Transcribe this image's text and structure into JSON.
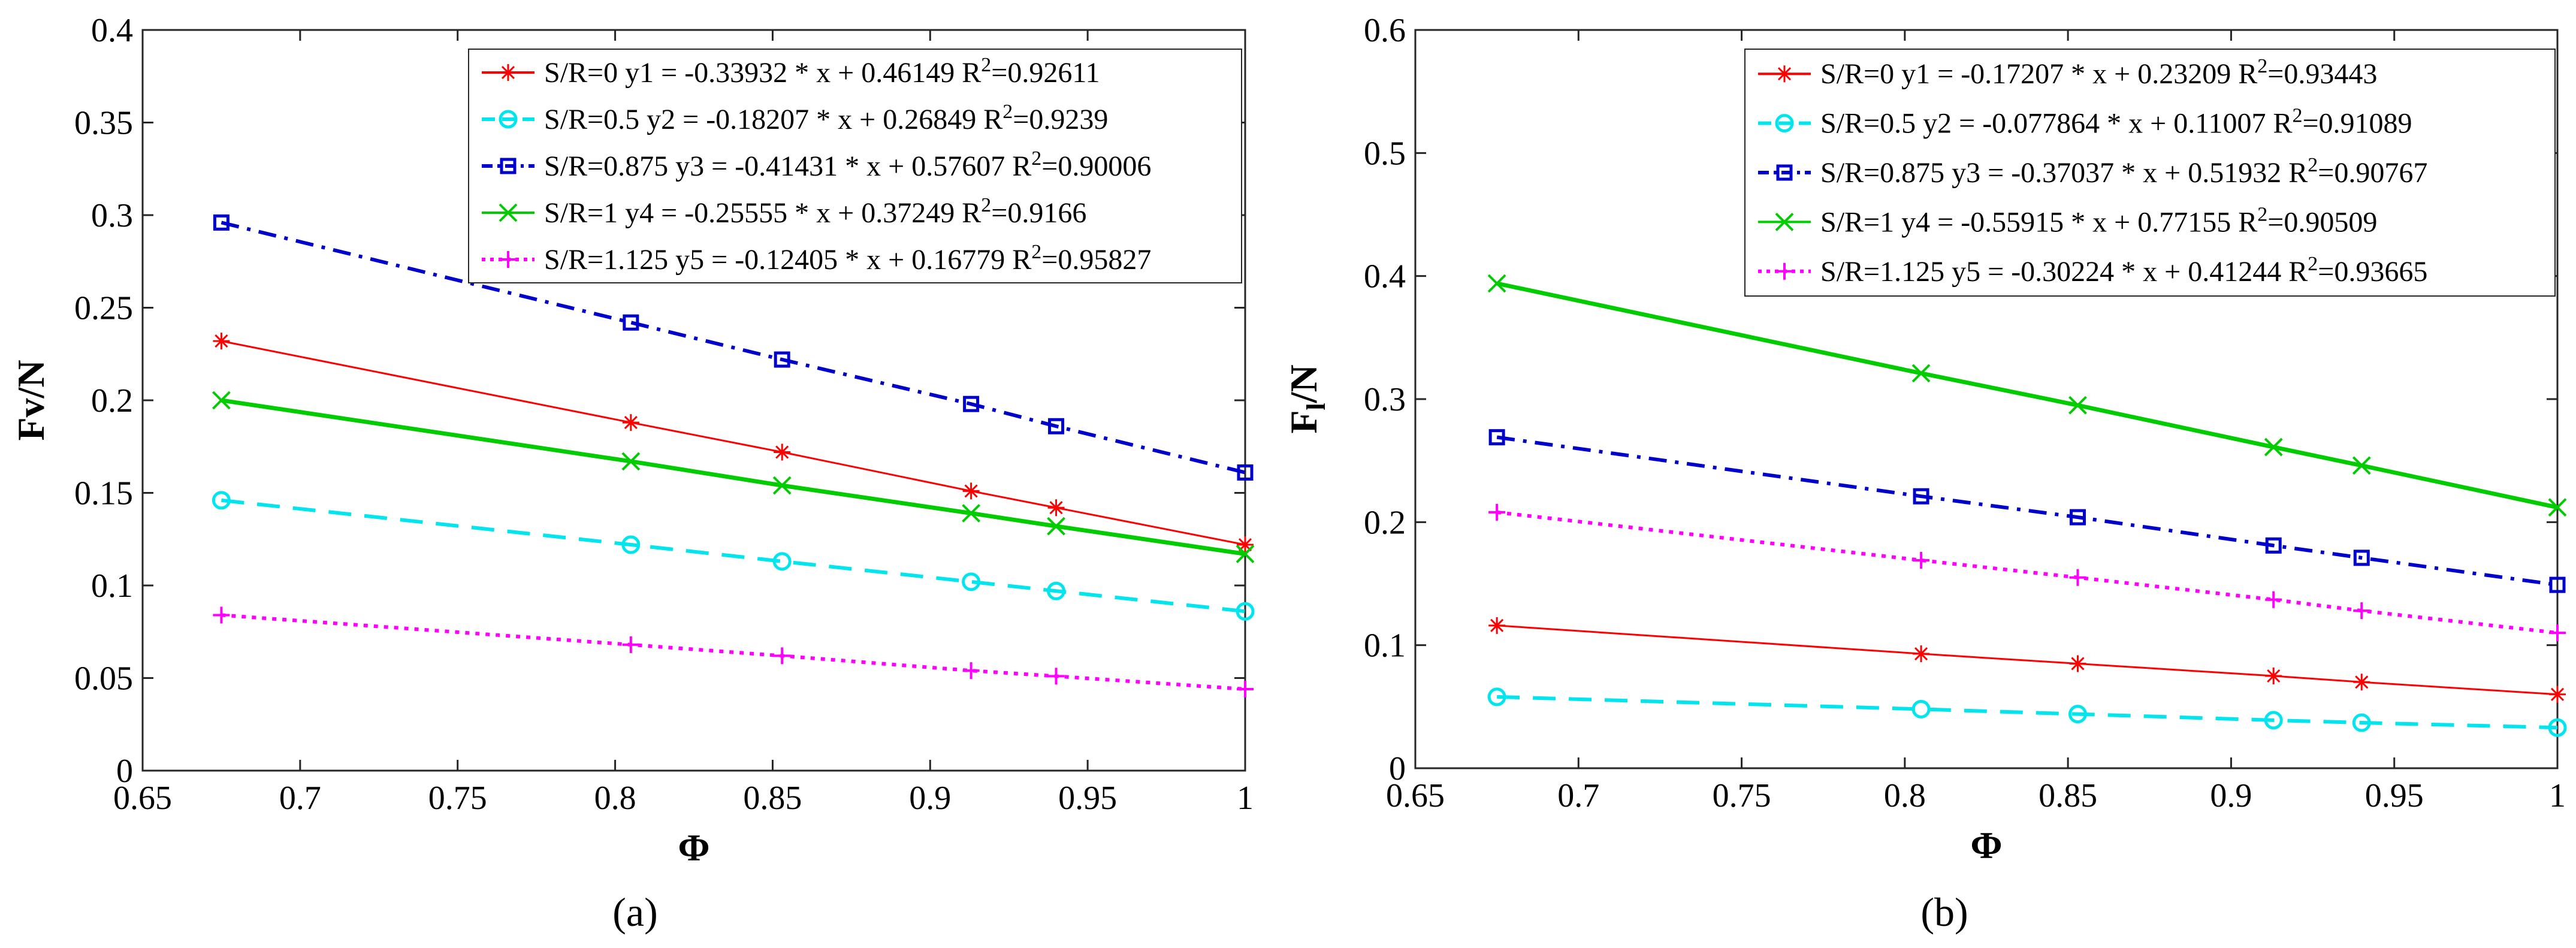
{
  "chart_data": [
    {
      "type": "line",
      "panel_label": "(a)",
      "xlabel": "Φ",
      "ylabel": "Fv/N",
      "xlim": [
        0.65,
        1.0
      ],
      "ylim": [
        0,
        0.4
      ],
      "xticks": [
        "0.65",
        "0.7",
        "0.75",
        "0.8",
        "0.85",
        "0.9",
        "0.95",
        "1"
      ],
      "yticks": [
        "0",
        "0.05",
        "0.1",
        "0.15",
        "0.2",
        "0.25",
        "0.3",
        "0.35",
        "0.4"
      ],
      "legend_position": "top-right",
      "x": [
        0.675,
        0.805,
        0.853,
        0.913,
        0.94,
        1.0
      ],
      "series": [
        {
          "name": "S/R=0",
          "legend": "S/R=0 y1 = -0.33932 * x + 0.46149 R",
          "r2": "=0.92611",
          "color": "#ff0000",
          "line_style": "solid",
          "marker": "asterisk",
          "values": [
            0.232,
            0.188,
            0.172,
            0.151,
            0.142,
            0.122
          ]
        },
        {
          "name": "S/R=0.5",
          "legend": "S/R=0.5 y2 = -0.18207 * x + 0.26849 R",
          "r2": "=0.9239",
          "color": "#00e5ee",
          "line_style": "dashed",
          "marker": "circle",
          "values": [
            0.146,
            0.122,
            0.113,
            0.102,
            0.097,
            0.086
          ]
        },
        {
          "name": "S/R=0.875",
          "legend": "S/R=0.875 y3 = -0.41431 * x + 0.57607 R",
          "r2": "=0.90006",
          "color": "#0000cd",
          "line_style": "dashdot",
          "marker": "square",
          "values": [
            0.296,
            0.242,
            0.222,
            0.198,
            0.186,
            0.161
          ]
        },
        {
          "name": "S/R=1",
          "legend": "S/R=1 y4 = -0.25555 * x + 0.37249 R",
          "r2": "=0.9166",
          "color": "#00cc00",
          "line_style": "solid",
          "marker": "x",
          "values": [
            0.2,
            0.167,
            0.154,
            0.139,
            0.132,
            0.117
          ]
        },
        {
          "name": "S/R=1.125",
          "legend": "S/R=1.125 y5 = -0.12405 * x + 0.16779 R",
          "r2": "=0.95827",
          "color": "#ff00ff",
          "line_style": "dotted",
          "marker": "plus",
          "values": [
            0.084,
            0.068,
            0.062,
            0.054,
            0.051,
            0.044
          ]
        }
      ]
    },
    {
      "type": "line",
      "panel_label": "(b)",
      "xlabel": "Φ",
      "ylabel": "Fl/N",
      "ylabel_main": "F",
      "ylabel_sub": "l",
      "ylabel_tail": "/N",
      "xlim": [
        0.65,
        1.0
      ],
      "ylim": [
        0,
        0.6
      ],
      "xticks": [
        "0.65",
        "0.7",
        "0.75",
        "0.8",
        "0.85",
        "0.9",
        "0.95",
        "1"
      ],
      "yticks": [
        "0",
        "0.1",
        "0.2",
        "0.3",
        "0.4",
        "0.5",
        "0.6"
      ],
      "legend_position": "top-right",
      "x": [
        0.675,
        0.805,
        0.853,
        0.913,
        0.94,
        1.0
      ],
      "series": [
        {
          "name": "S/R=0",
          "legend": "S/R=0  y1 = -0.17207 * x + 0.23209  R",
          "r2": "=0.93443",
          "color": "#ff0000",
          "line_style": "solid",
          "marker": "asterisk",
          "values": [
            0.116,
            0.093,
            0.085,
            0.075,
            0.07,
            0.06
          ]
        },
        {
          "name": "S/R=0.5",
          "legend": "S/R=0.5  y2 = -0.077864 * x + 0.11007  R",
          "r2": "=0.91089",
          "color": "#00e5ee",
          "line_style": "dashed",
          "marker": "circle",
          "values": [
            0.058,
            0.048,
            0.044,
            0.039,
            0.037,
            0.033
          ]
        },
        {
          "name": "S/R=0.875",
          "legend": "S/R=0.875 y3 = -0.37037 * x + 0.51932 R",
          "r2": "=0.90767",
          "color": "#0000cd",
          "line_style": "dashdot",
          "marker": "square",
          "values": [
            0.269,
            0.221,
            0.204,
            0.181,
            0.171,
            0.149
          ]
        },
        {
          "name": "S/R=1",
          "legend": "S/R=1  y4 = -0.55915 * x + 0.77155 R",
          "r2": "=0.90509",
          "color": "#00cc00",
          "line_style": "solid",
          "marker": "x",
          "values": [
            0.394,
            0.321,
            0.295,
            0.261,
            0.246,
            0.212
          ]
        },
        {
          "name": "S/R=1.125",
          "legend": "S/R=1.125  y5 = -0.30224 * x + 0.41244 R",
          "r2": "=0.93665",
          "color": "#ff00ff",
          "line_style": "dotted",
          "marker": "plus",
          "values": [
            0.208,
            0.169,
            0.155,
            0.137,
            0.128,
            0.11
          ]
        }
      ]
    }
  ]
}
